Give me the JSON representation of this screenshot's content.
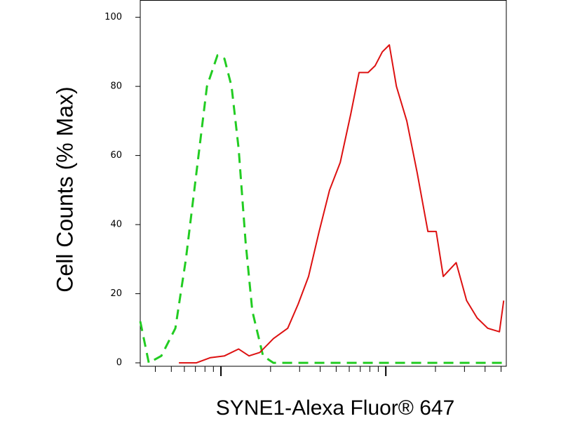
{
  "chart_data": {
    "type": "line",
    "x_label": "SYNE1-Alexa Fluor® 647",
    "y_label": "Cell Counts (% Max)",
    "xscale": "log",
    "xlim": [
      32.4,
      5380
    ],
    "ylim": [
      -1,
      105
    ],
    "xticks": [
      40,
      50,
      60,
      70,
      80,
      90,
      100,
      200,
      300,
      400,
      500,
      600,
      700,
      800,
      900,
      1000,
      2000,
      3000,
      4000,
      5000
    ],
    "yticks": [
      0,
      20,
      40,
      60,
      80,
      100
    ],
    "series": [
      {
        "color": "#22cc22",
        "dash": true,
        "x": [
          32.4,
          36.5,
          43.5,
          52.9,
          61.3,
          71.0,
          82.2,
          95.2,
          105,
          116,
          128,
          141,
          155,
          180,
          208,
          5380
        ],
        "values": [
          12,
          0,
          2,
          10,
          30,
          55,
          80,
          89,
          88,
          80,
          62,
          35,
          15,
          2,
          0,
          0
        ]
      },
      {
        "color": "#dd1111",
        "dash": false,
        "x": [
          55.6,
          71.0,
          86.4,
          105,
          128,
          148,
          172,
          208,
          254,
          294,
          340,
          394,
          456,
          529,
          613,
          688,
          781,
          862,
          952,
          1050,
          1160,
          1340,
          1550,
          1800,
          2020,
          2230,
          2670,
          3090,
          3580,
          4150,
          4890,
          5190
        ],
        "values": [
          0,
          0,
          1.5,
          2,
          4,
          2,
          3,
          7,
          10,
          17,
          25,
          38,
          50,
          58,
          72,
          84,
          84,
          86,
          90,
          92,
          80,
          70,
          55,
          38,
          38,
          25,
          29,
          18,
          13,
          10,
          9,
          18
        ]
      }
    ]
  }
}
